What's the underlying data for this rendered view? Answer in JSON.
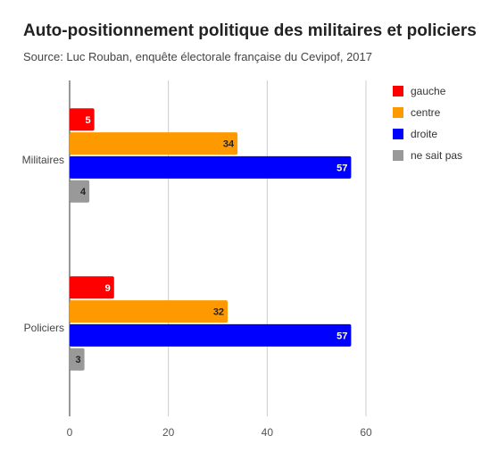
{
  "title": "Auto-positionnement politique des militaires et policiers",
  "subtitle": "Source: Luc Rouban, enquête électorale française du Cevipof, 2017",
  "chart_data": {
    "type": "bar",
    "orientation": "horizontal",
    "categories": [
      "Militaires",
      "Policiers"
    ],
    "series": [
      {
        "name": "gauche",
        "color": "#ff0000",
        "values": [
          5,
          9
        ]
      },
      {
        "name": "centre",
        "color": "#ff9900",
        "values": [
          34,
          32
        ]
      },
      {
        "name": "droite",
        "color": "#0000ff",
        "values": [
          57,
          57
        ]
      },
      {
        "name": "ne sait pas",
        "color": "#999999",
        "values": [
          4,
          3
        ]
      }
    ],
    "xlim": [
      0,
      60
    ],
    "xticks": [
      0,
      20,
      40,
      60
    ],
    "grid": true,
    "legend_position": "right"
  }
}
